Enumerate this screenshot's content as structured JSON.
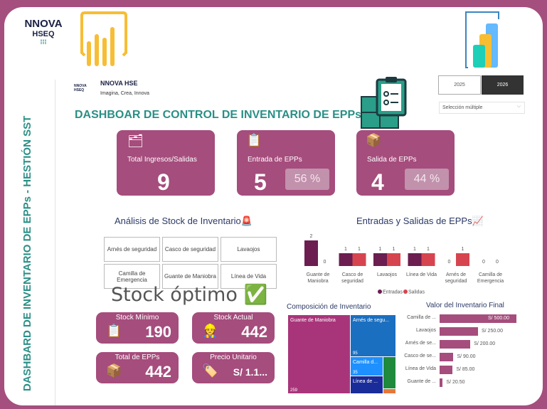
{
  "side_title": "DASHBARD DE INVENTARIO DE EPPs - HESTIÓN SST",
  "logo": {
    "line1": "NNOVA",
    "line2": "HSEQ"
  },
  "brand": {
    "name": "NNOVA HSE",
    "tagline": "Imagina, Crea, Innova",
    "mini_logo": "NNOVA HSEQ"
  },
  "title": "DASHBOAR DE CONTROL DE INVENTARIO DE EPPs",
  "years": [
    "2025",
    "2026"
  ],
  "selected_year": "2026",
  "dropdown": "Selección múltiple",
  "kpis": [
    {
      "label": "Total Ingresos/Salidas",
      "value": "9",
      "icon": "clipboard-icon"
    },
    {
      "label": "Entrada de EPPs",
      "value": "5",
      "pct": "56 %",
      "icon": "checklist-boxes-icon"
    },
    {
      "label": "Salida de EPPs",
      "value": "4",
      "pct": "44 %",
      "icon": "dispatch-icon"
    }
  ],
  "stock": {
    "title": "Análisis de Stock de Inventario🚨",
    "items": [
      "Arnés de seguridad",
      "Casco de seguridad",
      "Lavaojos",
      "Camilla de Emergencia",
      "Guante de Maniobra",
      "Línea de Vida"
    ],
    "status": "Stock óptimo ✅"
  },
  "metrics": [
    {
      "label": "Stock Mínimo",
      "value": "190",
      "icon": "📋"
    },
    {
      "label": "Stock Actual",
      "value": "442",
      "icon": "👷"
    },
    {
      "label": "Total de EPPs",
      "value": "442",
      "icon": "📦"
    },
    {
      "label": "Precio Unitario",
      "value": "S/ 1.1...",
      "icon": "🏷️"
    }
  ],
  "colors": {
    "accent": "#a54d7d",
    "teal": "#2a8f86",
    "entradas": "#6b1e4f",
    "salidas": "#d6454f"
  },
  "chart_data": [
    {
      "type": "bar",
      "title": "Entradas y Salidas de EPPs📈",
      "categories": [
        "Guante de Maniobra",
        "Casco de seguridad",
        "Lavaojos",
        "Línea de Vida",
        "Arnés de seguridad",
        "Camilla de Emergencia"
      ],
      "series": [
        {
          "name": "Entradas",
          "values": [
            2,
            1,
            1,
            1,
            0,
            0
          ]
        },
        {
          "name": "Salidas",
          "values": [
            0,
            1,
            1,
            1,
            1,
            0
          ]
        }
      ],
      "legend": "bottom"
    },
    {
      "type": "treemap",
      "title": "Composición de Inventario",
      "items": [
        {
          "label": "Guante de Maniobra",
          "value": 259,
          "color": "#a8357a"
        },
        {
          "label": "Arnés de segu...",
          "value": 95,
          "color": "#1b6fc0"
        },
        {
          "label": "Camilla d...",
          "value": 35,
          "color": "#1e90ff"
        },
        {
          "label": "Línea de ...",
          "value": "",
          "color": "#1a2c99"
        },
        {
          "label": "",
          "value": "",
          "color": "#1f8a3c"
        },
        {
          "label": "",
          "value": "",
          "color": "#e8763a"
        }
      ]
    },
    {
      "type": "bar",
      "orientation": "horizontal",
      "title": "Valor del Inventario Final",
      "categories": [
        "Camilla de ...",
        "Lavaojos",
        "Arnés de se...",
        "Casco de se...",
        "Línea de Vida",
        "Guante de ..."
      ],
      "values": [
        500,
        250,
        200,
        90,
        85,
        20.5
      ],
      "labels": [
        "S/ 500.00",
        "S/ 250.00",
        "S/ 200.00",
        "S/ 90.00",
        "S/ 85.00",
        "S/ 20.50"
      ]
    }
  ]
}
